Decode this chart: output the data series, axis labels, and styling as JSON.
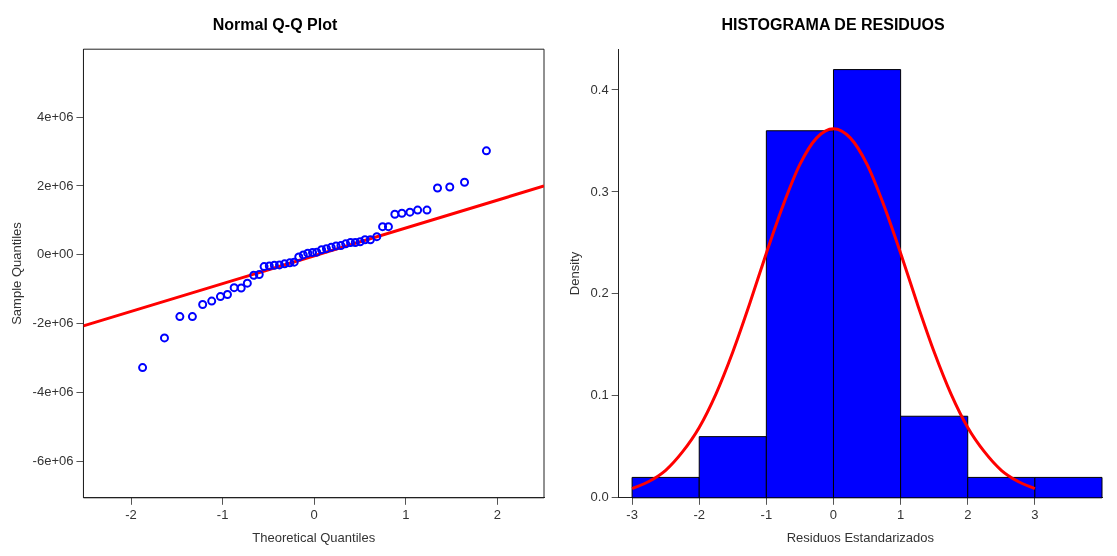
{
  "chart_data": [
    {
      "type": "scatter",
      "title": "Normal Q-Q Plot",
      "xlabel": "Theoretical Quantiles",
      "ylabel": "Sample Quantiles",
      "grid": false,
      "xlim": [
        -2.52,
        2.51
      ],
      "ylim": [
        -7050000,
        5970000
      ],
      "xticks": [
        -2,
        -1,
        0,
        1,
        2
      ],
      "yticks": [
        {
          "value": -6000000,
          "label": "-6e+06"
        },
        {
          "value": -4000000,
          "label": "-4e+06"
        },
        {
          "value": -2000000,
          "label": "-2e+06"
        },
        {
          "value": 0,
          "label": "0e+00"
        },
        {
          "value": 2000000,
          "label": "2e+06"
        },
        {
          "value": 4000000,
          "label": "4e+06"
        }
      ],
      "series": [
        {
          "type": "scatter",
          "color": "#0000ff",
          "marker": "circle",
          "x": [
            -1.874,
            -1.635,
            -1.467,
            -1.33,
            -1.218,
            -1.119,
            -1.024,
            -0.947,
            -0.874,
            -0.797,
            -0.73,
            -0.66,
            -0.6,
            -0.547,
            -0.49,
            -0.435,
            -0.379,
            -0.323,
            -0.266,
            -0.218,
            -0.168,
            -0.119,
            -0.07,
            -0.018,
            0.028,
            0.081,
            0.134,
            0.186,
            0.239,
            0.292,
            0.344,
            0.397,
            0.449,
            0.502,
            0.555,
            0.614,
            0.684,
            0.747,
            0.811,
            0.881,
            0.958,
            1.046,
            1.13,
            1.232,
            1.347,
            1.481,
            1.642,
            1.881
          ],
          "values": [
            -3270000,
            -2410000,
            -1790000,
            -1790000,
            -1440000,
            -1340000,
            -1210000,
            -1150000,
            -950000,
            -960000,
            -820000,
            -590000,
            -570000,
            -340000,
            -320000,
            -300000,
            -290000,
            -260000,
            -230000,
            -210000,
            -60000,
            0,
            50000,
            70000,
            80000,
            150000,
            180000,
            220000,
            260000,
            270000,
            320000,
            360000,
            360000,
            380000,
            440000,
            440000,
            530000,
            820000,
            820000,
            1180000,
            1210000,
            1240000,
            1300000,
            1300000,
            1940000,
            1970000,
            2110000,
            3020000
          ]
        },
        {
          "type": "line",
          "color": "#ff0000",
          "x": [
            -2.52,
            2.51
          ],
          "values": [
            -2060000,
            2000000
          ]
        }
      ]
    },
    {
      "type": "histogram",
      "title": "HISTOGRAMA DE RESIDUOS",
      "xlabel": "Residuos Estandarizados",
      "ylabel": "Density",
      "grid": false,
      "color": "#0000ff",
      "bins": [
        -3,
        -2,
        -1,
        0,
        1,
        2,
        3,
        4
      ],
      "values": [
        0.02,
        0.06,
        0.36,
        0.42,
        0.08,
        0.02,
        0.02
      ],
      "xlim": [
        -3.2,
        4
      ],
      "ylim": [
        0,
        0.44
      ],
      "xticks": [
        -3,
        -2,
        -1,
        0,
        1,
        2,
        3
      ],
      "yticks": [
        {
          "value": 0,
          "label": "0.0"
        },
        {
          "value": 0.1,
          "label": "0.1"
        },
        {
          "value": 0.2,
          "label": "0.2"
        },
        {
          "value": 0.3,
          "label": "0.3"
        },
        {
          "value": 0.4,
          "label": "0.4"
        }
      ],
      "series": [
        {
          "type": "line",
          "color": "#ff0000",
          "x": [
            -3,
            -2.75,
            -2.5,
            -2.25,
            -2,
            -1.75,
            -1.5,
            -1.25,
            -1,
            -0.75,
            -0.5,
            -0.25,
            0,
            0.25,
            0.5,
            0.75,
            1,
            1.25,
            1.5,
            1.75,
            2,
            2.25,
            2.5,
            2.75,
            3
          ],
          "values": [
            0.009,
            0.016,
            0.027,
            0.045,
            0.069,
            0.102,
            0.143,
            0.19,
            0.24,
            0.287,
            0.327,
            0.353,
            0.362,
            0.353,
            0.327,
            0.287,
            0.24,
            0.19,
            0.143,
            0.102,
            0.069,
            0.045,
            0.027,
            0.016,
            0.009
          ]
        }
      ]
    }
  ]
}
